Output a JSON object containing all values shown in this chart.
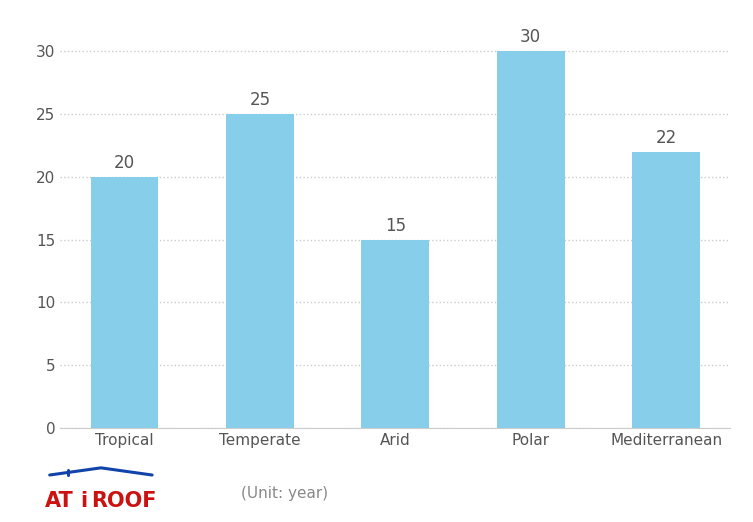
{
  "categories": [
    "Tropical",
    "Temperate",
    "Arid",
    "Polar",
    "Mediterranean"
  ],
  "values": [
    20,
    25,
    15,
    30,
    22
  ],
  "bar_color": "#87CEEB",
  "bar_edgecolor": "none",
  "ylim": [
    0,
    32
  ],
  "yticks": [
    0,
    5,
    10,
    15,
    20,
    25,
    30
  ],
  "grid_color": "#cccccc",
  "label_fontsize": 12,
  "tick_fontsize": 11,
  "value_label_fontsize": 12,
  "value_label_color": "#555555",
  "tick_label_color": "#555555",
  "background_color": "#ffffff",
  "unit_text": "(Unit: year)",
  "unit_fontsize": 11,
  "unit_color": "#888888",
  "bar_width": 0.5,
  "logo_at_color": "#cc1111",
  "logo_roof_color": "#1144aa"
}
